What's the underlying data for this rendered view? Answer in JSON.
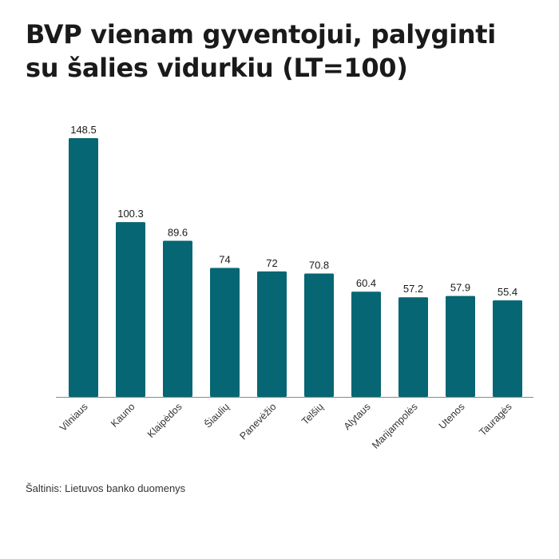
{
  "colors": {
    "bar": "#076673",
    "axis": "#888888"
  },
  "source": "Šaltinis: Lietuvos banko duomenys",
  "chart_data": {
    "type": "bar",
    "title": "BVP vienam gyventojui, palyginti su šalies vidurkiu (LT=100)",
    "categories": [
      "Vilniaus",
      "Kauno",
      "Klaipėdos",
      "Šiaulių",
      "Panevėžio",
      "Telšių",
      "Alytaus",
      "Marijampolės",
      "Utenos",
      "Tauragės"
    ],
    "values": [
      148.5,
      100.3,
      89.6,
      74,
      72,
      70.8,
      60.4,
      57.2,
      57.9,
      55.4
    ],
    "value_labels": [
      "148.5",
      "100.3",
      "89.6",
      "74",
      "72",
      "70.8",
      "60.4",
      "57.2",
      "57.9",
      "55.4"
    ],
    "xlabel": "",
    "ylabel": "",
    "ylim": [
      0,
      148.5
    ],
    "grid": false,
    "legend": "none"
  }
}
